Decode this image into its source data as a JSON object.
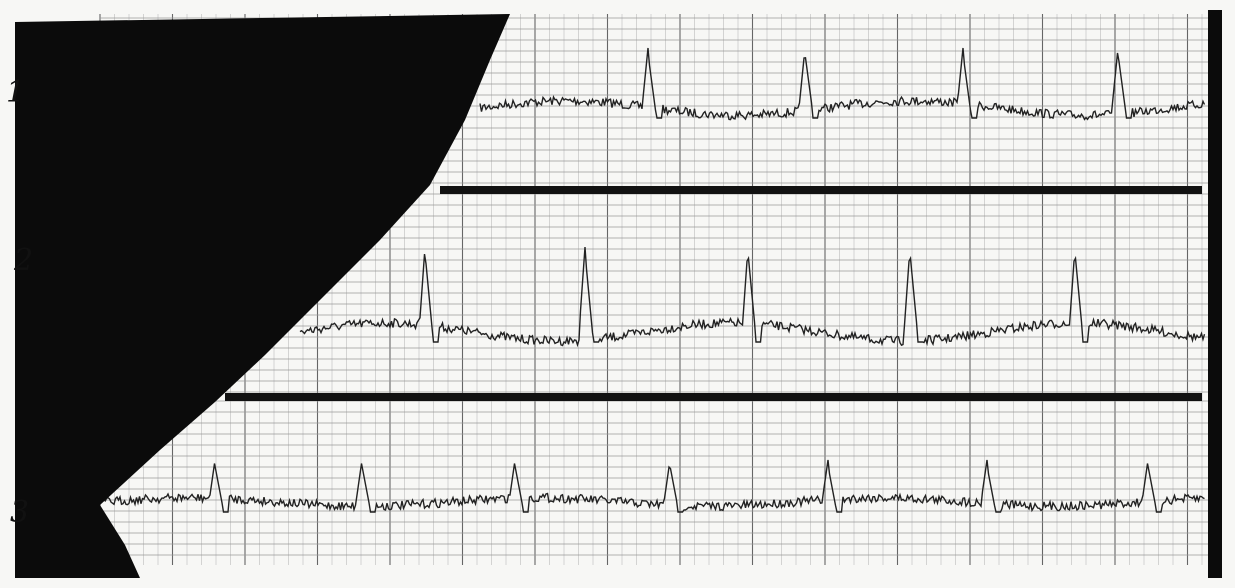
{
  "strips": [
    {
      "label": "1"
    },
    {
      "label": "2"
    },
    {
      "label": "3"
    }
  ]
}
